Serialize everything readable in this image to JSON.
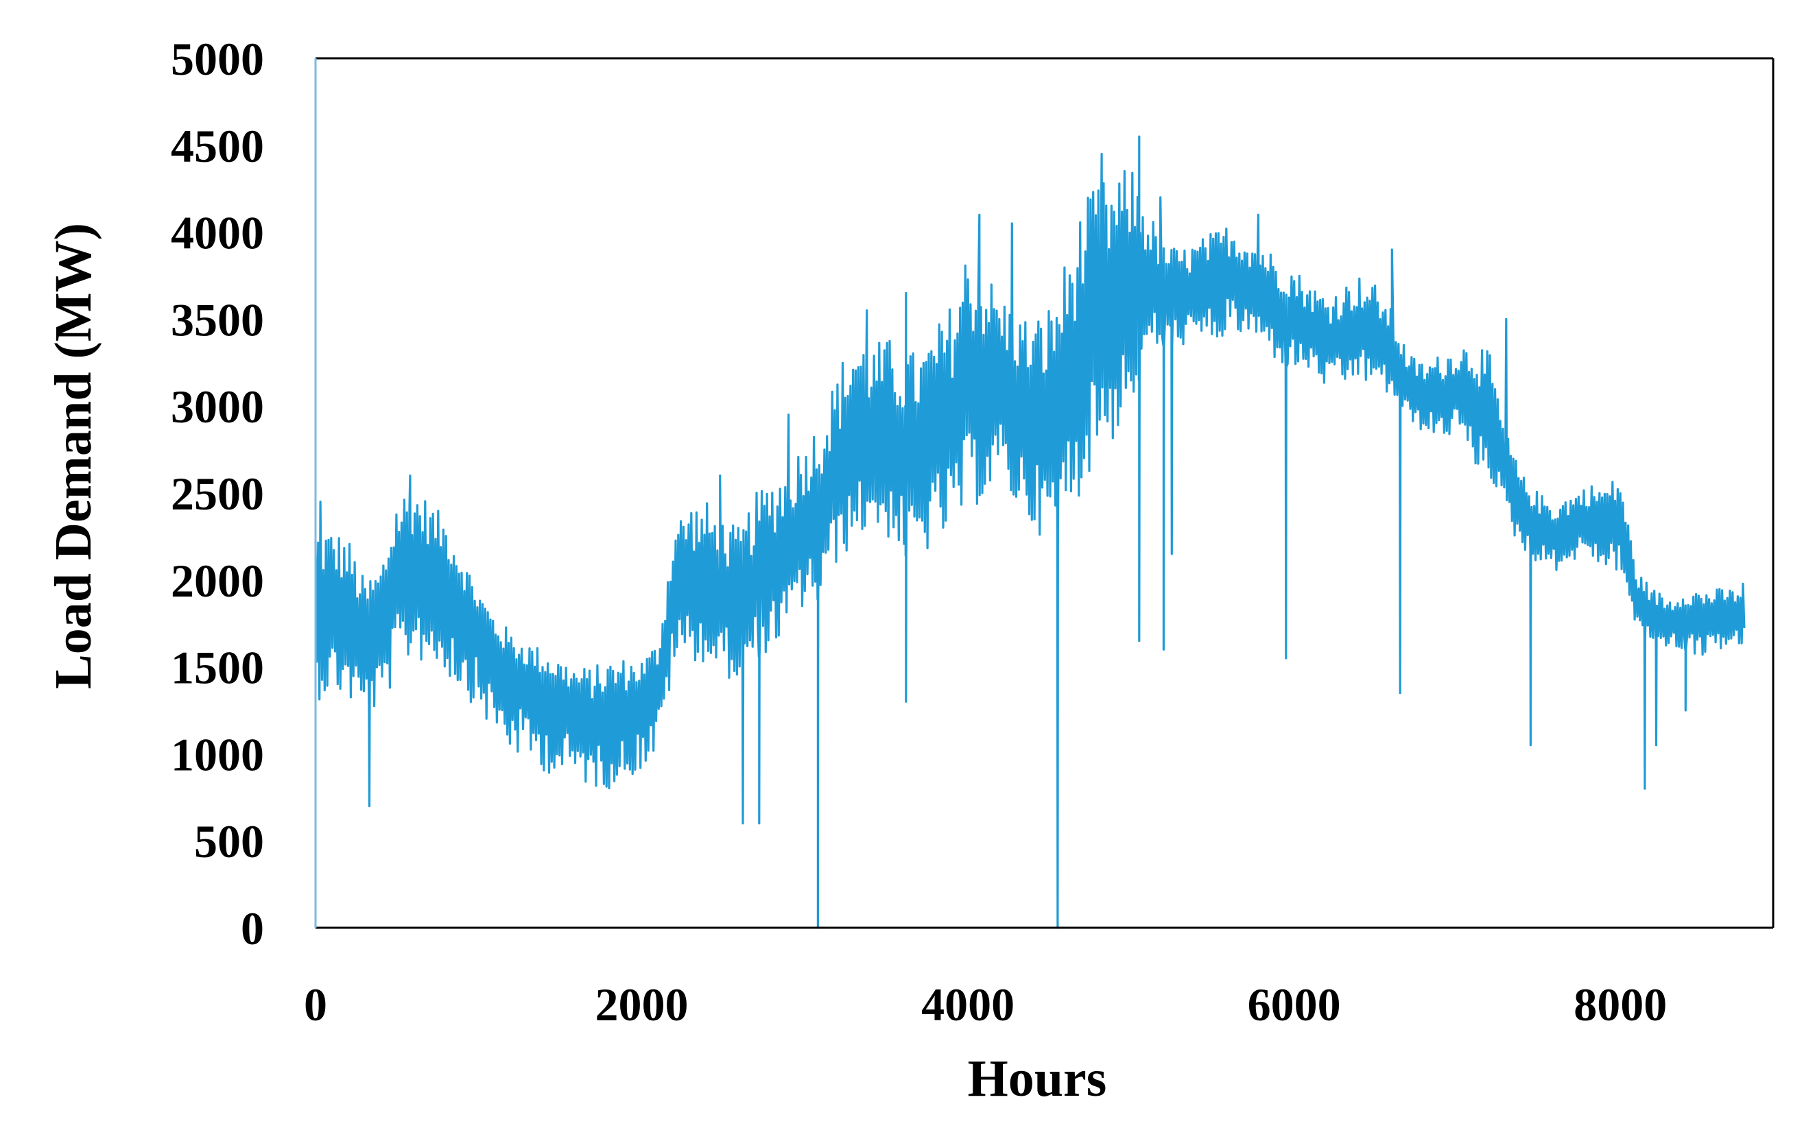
{
  "chart_data": {
    "type": "line",
    "title": "",
    "xlabel": "Hours",
    "ylabel": "Load Demand (MW)",
    "xlim": [
      0,
      9000
    ],
    "ylim": [
      0,
      5000
    ],
    "xticks": [
      0,
      2000,
      4000,
      6000,
      8000
    ],
    "yticks": [
      0,
      500,
      1000,
      1500,
      2000,
      2500,
      3000,
      3500,
      4000,
      4500,
      5000
    ],
    "xtick_labels": [
      "0",
      "2000",
      "4000",
      "6000",
      "8000"
    ],
    "ytick_labels": [
      "0",
      "500",
      "1000",
      "1500",
      "2000",
      "2500",
      "3000",
      "3500",
      "4000",
      "4500",
      "5000"
    ],
    "grid": false,
    "legend": "none",
    "color": "#1f9bd7",
    "series": [
      {
        "x": [
          0,
          100,
          200,
          300,
          400,
          500,
          600,
          700,
          800,
          900,
          1000,
          1100,
          1200,
          1300,
          1400,
          1500,
          1600,
          1700,
          1800,
          1900,
          2000,
          2100,
          2200,
          2300,
          2400,
          2500,
          2600,
          2700,
          2800,
          2900,
          3000,
          3100,
          3200,
          3300,
          3400,
          3500,
          3600,
          3700,
          3800,
          3900,
          4000,
          4100,
          4200,
          4300,
          4400,
          4500,
          4600,
          4700,
          4800,
          4900,
          5000,
          5100,
          5200,
          5300,
          5400,
          5500,
          5600,
          5700,
          5800,
          5900,
          6000,
          6100,
          6200,
          6300,
          6400,
          6500,
          6600,
          6700,
          6800,
          6900,
          7000,
          7100,
          7200,
          7300,
          7400,
          7500,
          7600,
          7700,
          7800,
          7900,
          8000,
          8100,
          8200,
          8300,
          8400,
          8500,
          8600,
          8700,
          8760
        ],
        "y": [
          1800,
          1850,
          1800,
          1650,
          1700,
          2000,
          2100,
          2050,
          2000,
          1850,
          1700,
          1550,
          1450,
          1400,
          1350,
          1300,
          1250,
          1200,
          1200,
          1250,
          1300,
          1400,
          1950,
          2000,
          1950,
          1900,
          1850,
          2000,
          2050,
          2150,
          2300,
          2400,
          2600,
          2750,
          2800,
          2750,
          2700,
          2750,
          2850,
          2900,
          3100,
          3150,
          3100,
          3000,
          2900,
          2850,
          3050,
          3300,
          3500,
          3550,
          3700,
          3700,
          3650,
          3650,
          3650,
          3700,
          3750,
          3700,
          3650,
          3550,
          3500,
          3450,
          3350,
          3400,
          3450,
          3400,
          3300,
          3100,
          3050,
          3050,
          3100,
          3000,
          2900,
          2600,
          2400,
          2300,
          2250,
          2300,
          2350,
          2300,
          2350,
          1900,
          1800,
          1750,
          1800,
          1750,
          1800,
          1800,
          1800
        ],
        "envelope_high": [
          2350,
          2300,
          2250,
          2000,
          2100,
          2500,
          2550,
          2450,
          2350,
          2150,
          1950,
          1800,
          1700,
          1650,
          1600,
          1550,
          1500,
          1500,
          1550,
          1550,
          1550,
          1650,
          2350,
          2450,
          2450,
          2350,
          2300,
          2500,
          2600,
          2700,
          2800,
          2950,
          3200,
          3450,
          3350,
          3400,
          3350,
          3300,
          3450,
          3600,
          3950,
          3800,
          3650,
          3550,
          3500,
          3600,
          3850,
          4150,
          4300,
          4300,
          4400,
          4150,
          3950,
          3900,
          3950,
          4000,
          4050,
          4000,
          3950,
          3850,
          3800,
          3700,
          3650,
          3700,
          3750,
          3700,
          3550,
          3300,
          3250,
          3300,
          3350,
          3400,
          3300,
          2850,
          2600,
          2500,
          2450,
          2500,
          2550,
          2550,
          2600,
          2050,
          1950,
          1900,
          1950,
          1950,
          1950,
          1950,
          2000
        ],
        "envelope_low": [
          1300,
          1350,
          1300,
          1200,
          1250,
          1450,
          1550,
          1500,
          1450,
          1350,
          1250,
          1100,
          1000,
          950,
          900,
          850,
          850,
          800,
          800,
          850,
          900,
          1000,
          1500,
          1550,
          1500,
          1450,
          1400,
          1550,
          1600,
          1700,
          1850,
          1900,
          2100,
          2200,
          2300,
          2250,
          2150,
          2100,
          2200,
          2250,
          2400,
          2450,
          2550,
          2400,
          2300,
          2200,
          2400,
          2500,
          2750,
          2800,
          3000,
          3300,
          3350,
          3350,
          3350,
          3350,
          3400,
          3400,
          3350,
          3250,
          3200,
          3200,
          3100,
          3100,
          3150,
          3100,
          3050,
          2900,
          2850,
          2800,
          2850,
          2650,
          2600,
          2350,
          2150,
          2100,
          2050,
          2100,
          2150,
          2050,
          2050,
          1700,
          1650,
          1600,
          1600,
          1550,
          1600,
          1600,
          1600
        ],
        "dips": [
          [
            330,
            700
          ],
          [
            2620,
            600
          ],
          [
            2720,
            600
          ],
          [
            3080,
            0
          ],
          [
            3620,
            1300
          ],
          [
            4550,
            0
          ],
          [
            5050,
            1650
          ],
          [
            5200,
            1600
          ],
          [
            5250,
            2150
          ],
          [
            5950,
            1550
          ],
          [
            6650,
            1350
          ],
          [
            7450,
            1050
          ],
          [
            8150,
            800
          ],
          [
            8220,
            1050
          ],
          [
            8400,
            1250
          ]
        ],
        "spikes": [
          [
            30,
            2450
          ],
          [
            580,
            2600
          ],
          [
            2480,
            2600
          ],
          [
            2900,
            2950
          ],
          [
            3380,
            3550
          ],
          [
            3620,
            3650
          ],
          [
            4070,
            4100
          ],
          [
            4270,
            4050
          ],
          [
            4820,
            4450
          ],
          [
            5050,
            4550
          ],
          [
            5180,
            4200
          ],
          [
            5780,
            4100
          ],
          [
            6600,
            3900
          ],
          [
            7300,
            3500
          ]
        ]
      }
    ]
  }
}
